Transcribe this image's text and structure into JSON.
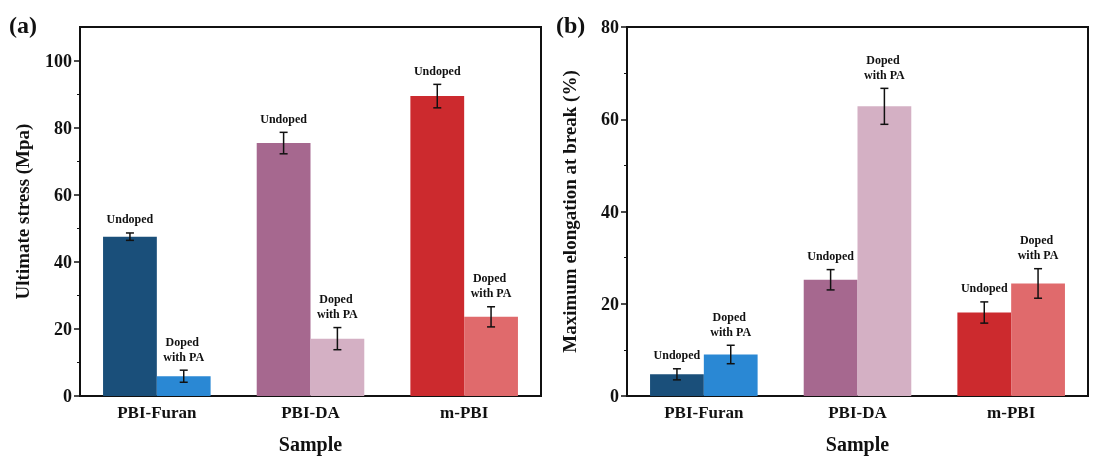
{
  "chart_data": [
    {
      "type": "bar",
      "title": "(a)",
      "xlabel": "Sample",
      "ylabel": "Ultimate stress (Mpa)",
      "categories": [
        "PBI-Furan",
        "PBI-DA",
        "m-PBI"
      ],
      "ylim": [
        0,
        110
      ],
      "yticks": [
        0,
        20,
        40,
        60,
        80,
        100
      ],
      "grid": false,
      "series": [
        {
          "name": "Undoped",
          "colors": [
            "#1a4f7a",
            "#a6688f",
            "#cc2a2e"
          ],
          "values": [
            47.5,
            75.4,
            89.4
          ],
          "errors": [
            1.1,
            3.2,
            3.5
          ]
        },
        {
          "name": "Doped with PA",
          "colors": [
            "#2a88d4",
            "#d4b0c4",
            "#e06a6c"
          ],
          "values": [
            5.9,
            17.1,
            23.6
          ],
          "errors": [
            1.8,
            3.3,
            3.0
          ]
        }
      ]
    },
    {
      "type": "bar",
      "title": "(b)",
      "xlabel": "Sample",
      "ylabel": "Maximum elongation at break (%)",
      "categories": [
        "PBI-Furan",
        "PBI-DA",
        "m-PBI"
      ],
      "ylim": [
        0,
        80
      ],
      "yticks": [
        0,
        20,
        40,
        60,
        80
      ],
      "grid": false,
      "series": [
        {
          "name": "Undoped",
          "colors": [
            "#1a4f7a",
            "#a6688f",
            "#cc2a2e"
          ],
          "values": [
            4.7,
            25.2,
            18.1
          ],
          "errors": [
            1.2,
            2.2,
            2.3
          ]
        },
        {
          "name": "Doped with PA",
          "colors": [
            "#2a88d4",
            "#d4b0c4",
            "#e06a6c"
          ],
          "values": [
            9.0,
            62.8,
            24.4
          ],
          "errors": [
            2.0,
            3.9,
            3.2
          ]
        }
      ]
    }
  ]
}
